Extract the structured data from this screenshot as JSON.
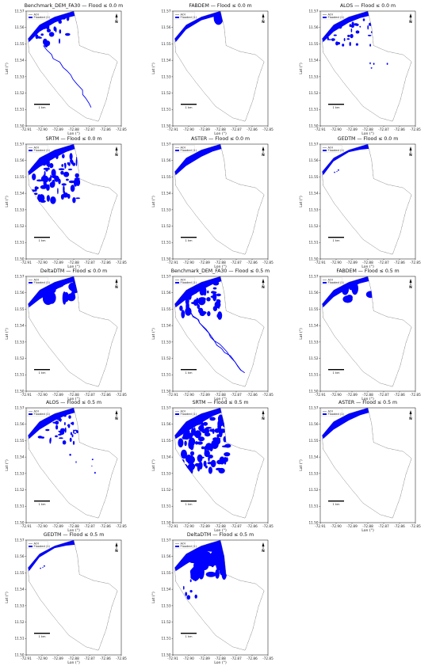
{
  "page": {
    "legend_aoi": "AOI",
    "legend_flooded": "Flooded (1)",
    "scalebar_label": "1 km",
    "north_label": "N",
    "colors": {
      "flood": "#0000ff",
      "aoi": "#555555",
      "frame": "#000000"
    }
  },
  "chart_data": [
    {
      "type": "map",
      "title": "Benchmark_DEM_FA30 — Flood ≤ 0.0 m",
      "dem": "Benchmark_DEM_FA30",
      "threshold_m": 0.0,
      "pattern": "benchmark",
      "xlabel": "Lon (°)",
      "ylabel": "Lat (°)",
      "xlim": [
        -72.91,
        -72.85
      ],
      "ylim": [
        11.5,
        11.57
      ],
      "xticks": [
        "-72.91",
        "-72.90",
        "-72.89",
        "-72.88",
        "-72.87",
        "-72.86",
        "-72.85"
      ],
      "yticks": [
        "11.50",
        "11.51",
        "11.52",
        "11.53",
        "11.54",
        "11.55",
        "11.56",
        "11.57"
      ]
    },
    {
      "type": "map",
      "title": "FABDEM — Flood ≤ 0.0 m",
      "dem": "FABDEM",
      "threshold_m": 0.0,
      "pattern": "fabdem0",
      "xlabel": "Lon (°)",
      "ylabel": "Lat (°)",
      "xlim": [
        -72.91,
        -72.85
      ],
      "ylim": [
        11.5,
        11.57
      ],
      "xticks": [
        "-72.91",
        "-72.90",
        "-72.89",
        "-72.88",
        "-72.87",
        "-72.86",
        "-72.85"
      ],
      "yticks": [
        "11.50",
        "11.51",
        "11.52",
        "11.53",
        "11.54",
        "11.55",
        "11.56",
        "11.57"
      ]
    },
    {
      "type": "map",
      "title": "ALOS — Flood ≤ 0.0 m",
      "dem": "ALOS",
      "threshold_m": 0.0,
      "pattern": "alos",
      "xlabel": "Lon (°)",
      "ylabel": "Lat (°)",
      "xlim": [
        -72.91,
        -72.85
      ],
      "ylim": [
        11.5,
        11.57
      ],
      "xticks": [
        "-72.91",
        "-72.90",
        "-72.89",
        "-72.88",
        "-72.87",
        "-72.86",
        "-72.85"
      ],
      "yticks": [
        "11.50",
        "11.51",
        "11.52",
        "11.53",
        "11.54",
        "11.55",
        "11.56",
        "11.57"
      ]
    },
    {
      "type": "map",
      "title": "SRTM — Flood ≤ 0.0 m",
      "dem": "SRTM",
      "threshold_m": 0.0,
      "pattern": "srtm",
      "xlabel": "Lon (°)",
      "ylabel": "Lat (°)",
      "xlim": [
        -72.91,
        -72.85
      ],
      "ylim": [
        11.5,
        11.57
      ],
      "xticks": [
        "-72.91",
        "-72.90",
        "-72.89",
        "-72.88",
        "-72.87",
        "-72.86",
        "-72.85"
      ],
      "yticks": [
        "11.50",
        "11.51",
        "11.52",
        "11.53",
        "11.54",
        "11.55",
        "11.56",
        "11.57"
      ]
    },
    {
      "type": "map",
      "title": "ASTER — Flood ≤ 0.0 m",
      "dem": "ASTER",
      "threshold_m": 0.0,
      "pattern": "coast",
      "xlabel": "Lon (°)",
      "ylabel": "Lat (°)",
      "xlim": [
        -72.91,
        -72.85
      ],
      "ylim": [
        11.5,
        11.57
      ],
      "xticks": [
        "-72.91",
        "-72.90",
        "-72.89",
        "-72.88",
        "-72.87",
        "-72.86",
        "-72.85"
      ],
      "yticks": [
        "11.50",
        "11.51",
        "11.52",
        "11.53",
        "11.54",
        "11.55",
        "11.56",
        "11.57"
      ]
    },
    {
      "type": "map",
      "title": "GEDTM — Flood ≤ 0.0 m",
      "dem": "GEDTM",
      "threshold_m": 0.0,
      "pattern": "coast_thin",
      "xlabel": "Lon (°)",
      "ylabel": "Lat (°)",
      "xlim": [
        -72.91,
        -72.85
      ],
      "ylim": [
        11.5,
        11.57
      ],
      "xticks": [
        "-72.91",
        "-72.90",
        "-72.89",
        "-72.88",
        "-72.87",
        "-72.86",
        "-72.85"
      ],
      "yticks": [
        "11.50",
        "11.51",
        "11.52",
        "11.53",
        "11.54",
        "11.55",
        "11.56",
        "11.57"
      ]
    },
    {
      "type": "map",
      "title": "DeltaDTM — Flood ≤ 0.0 m",
      "dem": "DeltaDTM",
      "threshold_m": 0.0,
      "pattern": "delta0",
      "xlabel": "Lon (°)",
      "ylabel": "Lat (°)",
      "xlim": [
        -72.91,
        -72.85
      ],
      "ylim": [
        11.5,
        11.57
      ],
      "xticks": [
        "-72.91",
        "-72.90",
        "-72.89",
        "-72.88",
        "-72.87",
        "-72.86",
        "-72.85"
      ],
      "yticks": [
        "11.50",
        "11.51",
        "11.52",
        "11.53",
        "11.54",
        "11.55",
        "11.56",
        "11.57"
      ]
    },
    {
      "type": "map",
      "title": "Benchmark_DEM_FA30 — Flood ≤ 0.5 m",
      "dem": "Benchmark_DEM_FA30",
      "threshold_m": 0.5,
      "pattern": "benchmark5",
      "xlabel": "Lon (°)",
      "ylabel": "Lat (°)",
      "xlim": [
        -72.91,
        -72.85
      ],
      "ylim": [
        11.5,
        11.57
      ],
      "xticks": [
        "-72.91",
        "-72.90",
        "-72.89",
        "-72.88",
        "-72.87",
        "-72.86",
        "-72.85"
      ],
      "yticks": [
        "11.50",
        "11.51",
        "11.52",
        "11.53",
        "11.54",
        "11.55",
        "11.56",
        "11.57"
      ]
    },
    {
      "type": "map",
      "title": "FABDEM — Flood ≤ 0.5 m",
      "dem": "FABDEM",
      "threshold_m": 0.5,
      "pattern": "fabdem5",
      "xlabel": "Lon (°)",
      "ylabel": "Lat (°)",
      "xlim": [
        -72.91,
        -72.85
      ],
      "ylim": [
        11.5,
        11.57
      ],
      "xticks": [
        "-72.91",
        "-72.90",
        "-72.89",
        "-72.88",
        "-72.87",
        "-72.86",
        "-72.85"
      ],
      "yticks": [
        "11.50",
        "11.51",
        "11.52",
        "11.53",
        "11.54",
        "11.55",
        "11.56",
        "11.57"
      ]
    },
    {
      "type": "map",
      "title": "ALOS — Flood ≤ 0.5 m",
      "dem": "ALOS",
      "threshold_m": 0.5,
      "pattern": "alos5",
      "xlabel": "Lon (°)",
      "ylabel": "Lat (°)",
      "xlim": [
        -72.91,
        -72.85
      ],
      "ylim": [
        11.5,
        11.57
      ],
      "xticks": [
        "-72.91",
        "-72.90",
        "-72.89",
        "-72.88",
        "-72.87",
        "-72.86",
        "-72.85"
      ],
      "yticks": [
        "11.50",
        "11.51",
        "11.52",
        "11.53",
        "11.54",
        "11.55",
        "11.56",
        "11.57"
      ]
    },
    {
      "type": "map",
      "title": "SRTM — Flood ≤ 0.5 m",
      "dem": "SRTM",
      "threshold_m": 0.5,
      "pattern": "srtm5",
      "xlabel": "Lon (°)",
      "ylabel": "Lat (°)",
      "xlim": [
        -72.91,
        -72.85
      ],
      "ylim": [
        11.5,
        11.57
      ],
      "xticks": [
        "-72.91",
        "-72.90",
        "-72.89",
        "-72.88",
        "-72.87",
        "-72.86",
        "-72.85"
      ],
      "yticks": [
        "11.50",
        "11.51",
        "11.52",
        "11.53",
        "11.54",
        "11.55",
        "11.56",
        "11.57"
      ]
    },
    {
      "type": "map",
      "title": "ASTER — Flood ≤ 0.5 m",
      "dem": "ASTER",
      "threshold_m": 0.5,
      "pattern": "coast",
      "xlabel": "Lon (°)",
      "ylabel": "Lat (°)",
      "xlim": [
        -72.91,
        -72.85
      ],
      "ylim": [
        11.5,
        11.57
      ],
      "xticks": [
        "-72.91",
        "-72.90",
        "-72.89",
        "-72.88",
        "-72.87",
        "-72.86",
        "-72.85"
      ],
      "yticks": [
        "11.50",
        "11.51",
        "11.52",
        "11.53",
        "11.54",
        "11.55",
        "11.56",
        "11.57"
      ]
    },
    {
      "type": "map",
      "title": "GEDTM — Flood ≤ 0.5 m",
      "dem": "GEDTM",
      "threshold_m": 0.5,
      "pattern": "coast_thin",
      "xlabel": "Lon (°)",
      "ylabel": "Lat (°)",
      "xlim": [
        -72.91,
        -72.85
      ],
      "ylim": [
        11.5,
        11.57
      ],
      "xticks": [
        "-72.91",
        "-72.90",
        "-72.89",
        "-72.88",
        "-72.87",
        "-72.86",
        "-72.85"
      ],
      "yticks": [
        "11.50",
        "11.51",
        "11.52",
        "11.53",
        "11.54",
        "11.55",
        "11.56",
        "11.57"
      ]
    },
    {
      "type": "map",
      "title": "DeltaDTM — Flood ≤ 0.5 m",
      "dem": "DeltaDTM",
      "threshold_m": 0.5,
      "pattern": "delta5",
      "xlabel": "Lon (°)",
      "ylabel": "Lat (°)",
      "xlim": [
        -72.91,
        -72.85
      ],
      "ylim": [
        11.5,
        11.57
      ],
      "xticks": [
        "-72.91",
        "-72.90",
        "-72.89",
        "-72.88",
        "-72.87",
        "-72.86",
        "-72.85"
      ],
      "yticks": [
        "11.50",
        "11.51",
        "11.52",
        "11.53",
        "11.54",
        "11.55",
        "11.56",
        "11.57"
      ]
    }
  ]
}
